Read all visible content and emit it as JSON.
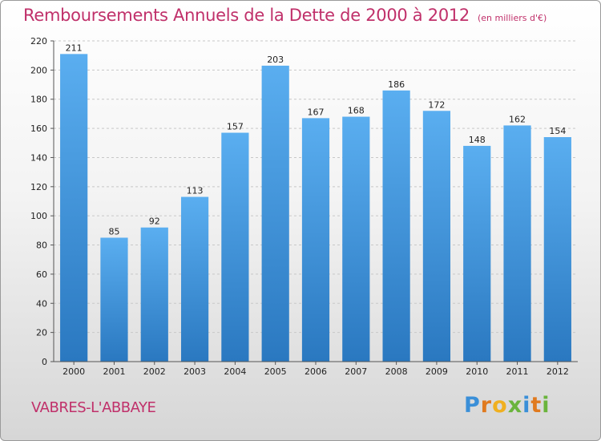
{
  "title": "Remboursements Annuels de la Dette de 2000 à 2012",
  "unit_note": "(en milliers d'€)",
  "commune": "VABRES-L'ABBAYE",
  "logo": {
    "letters": [
      "P",
      "r",
      "o",
      "x",
      "i",
      "t",
      "i"
    ],
    "colors": [
      "#3a8fd8",
      "#e07a1f",
      "#f0b020",
      "#6ab43c",
      "#3a8fd8",
      "#e07a1f",
      "#6ab43c"
    ]
  },
  "colors": {
    "bar_top": "#5aaef0",
    "bar_bottom": "#2a78c0",
    "title": "#c0306a"
  },
  "chart_data": {
    "type": "bar",
    "categories": [
      "2000",
      "2001",
      "2002",
      "2003",
      "2004",
      "2005",
      "2006",
      "2007",
      "2008",
      "2009",
      "2010",
      "2011",
      "2012"
    ],
    "values": [
      211,
      85,
      92,
      113,
      157,
      203,
      167,
      168,
      186,
      172,
      148,
      162,
      154
    ],
    "yticks": [
      0,
      20,
      40,
      60,
      80,
      100,
      120,
      140,
      160,
      180,
      200,
      220
    ],
    "ylim": [
      0,
      220
    ],
    "grid": true,
    "legend": "none"
  }
}
